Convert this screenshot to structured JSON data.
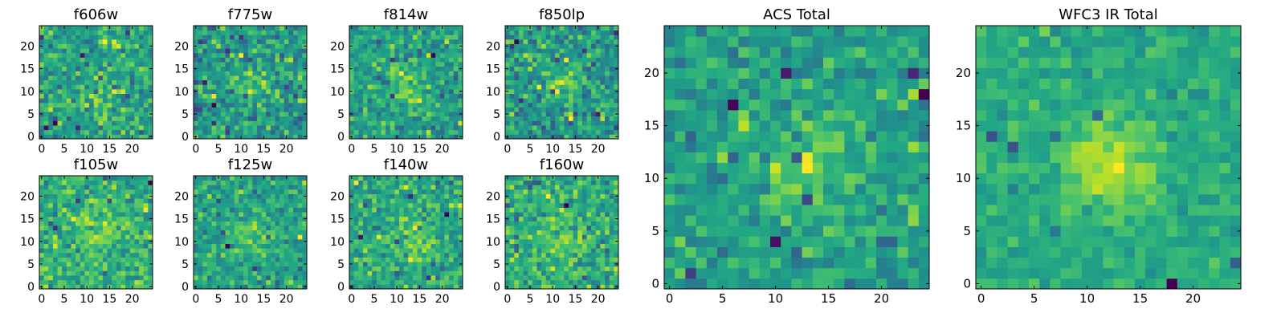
{
  "chart_data": [
    {
      "type": "heatmap",
      "title": "f606w",
      "colormap": "viridis",
      "xlim": [
        -0.5,
        24.5
      ],
      "ylim": [
        -0.5,
        24.5
      ],
      "xticks": [
        0,
        5,
        10,
        15,
        20
      ],
      "yticks": [
        0,
        5,
        10,
        15,
        20
      ],
      "grid": false,
      "seed": 11,
      "center": [
        13,
        9
      ],
      "signal": 0.15,
      "noise": 1.0
    },
    {
      "type": "heatmap",
      "title": "f775w",
      "colormap": "viridis",
      "xlim": [
        -0.5,
        24.5
      ],
      "ylim": [
        -0.5,
        24.5
      ],
      "xticks": [
        0,
        5,
        10,
        15,
        20
      ],
      "yticks": [
        0,
        5,
        10,
        15,
        20
      ],
      "grid": false,
      "seed": 23,
      "center": [
        13,
        11
      ],
      "signal": 0.3,
      "noise": 1.0
    },
    {
      "type": "heatmap",
      "title": "f814w",
      "colormap": "viridis",
      "xlim": [
        -0.5,
        24.5
      ],
      "ylim": [
        -0.5,
        24.5
      ],
      "xticks": [
        0,
        5,
        10,
        15,
        20
      ],
      "yticks": [
        0,
        5,
        10,
        15,
        20
      ],
      "grid": false,
      "seed": 37,
      "center": [
        12,
        11
      ],
      "signal": 0.45,
      "noise": 1.0
    },
    {
      "type": "heatmap",
      "title": "f850lp",
      "colormap": "viridis",
      "xlim": [
        -0.5,
        24.5
      ],
      "ylim": [
        -0.5,
        24.5
      ],
      "xticks": [
        0,
        5,
        10,
        15,
        20
      ],
      "yticks": [
        0,
        5,
        10,
        15,
        20
      ],
      "grid": false,
      "seed": 41,
      "center": [
        12,
        12
      ],
      "signal": 0.5,
      "noise": 1.0
    },
    {
      "type": "heatmap",
      "title": "f105w",
      "colormap": "viridis",
      "xlim": [
        -0.5,
        24.5
      ],
      "ylim": [
        -0.5,
        24.5
      ],
      "xticks": [
        0,
        5,
        10,
        15,
        20
      ],
      "yticks": [
        0,
        5,
        10,
        15,
        20
      ],
      "grid": false,
      "seed": 53,
      "center": [
        13,
        11
      ],
      "signal": 0.5,
      "noise": 1.0
    },
    {
      "type": "heatmap",
      "title": "f125w",
      "colormap": "viridis",
      "xlim": [
        -0.5,
        24.5
      ],
      "ylim": [
        -0.5,
        24.5
      ],
      "xticks": [
        0,
        5,
        10,
        15,
        20
      ],
      "yticks": [
        0,
        5,
        10,
        15,
        20
      ],
      "grid": false,
      "seed": 67,
      "center": [
        12,
        11
      ],
      "signal": 0.55,
      "noise": 1.0
    },
    {
      "type": "heatmap",
      "title": "f140w",
      "colormap": "viridis",
      "xlim": [
        -0.5,
        24.5
      ],
      "ylim": [
        -0.5,
        24.5
      ],
      "xticks": [
        0,
        5,
        10,
        15,
        20
      ],
      "yticks": [
        0,
        5,
        10,
        15,
        20
      ],
      "grid": false,
      "seed": 71,
      "center": [
        13,
        10
      ],
      "signal": 0.6,
      "noise": 1.0
    },
    {
      "type": "heatmap",
      "title": "f160w",
      "colormap": "viridis",
      "xlim": [
        -0.5,
        24.5
      ],
      "ylim": [
        -0.5,
        24.5
      ],
      "xticks": [
        0,
        5,
        10,
        15,
        20
      ],
      "yticks": [
        0,
        5,
        10,
        15,
        20
      ],
      "grid": false,
      "seed": 89,
      "center": [
        12,
        11
      ],
      "signal": 0.55,
      "noise": 1.0
    },
    {
      "type": "heatmap",
      "title": "ACS Total",
      "colormap": "viridis",
      "xlim": [
        -0.5,
        24.5
      ],
      "ylim": [
        -0.5,
        24.5
      ],
      "xticks": [
        0,
        5,
        10,
        15,
        20
      ],
      "yticks": [
        0,
        5,
        10,
        15,
        20
      ],
      "grid": false,
      "seed": 97,
      "center": [
        13,
        11
      ],
      "signal": 0.6,
      "noise": 0.8
    },
    {
      "type": "heatmap",
      "title": "WFC3 IR Total",
      "colormap": "viridis",
      "xlim": [
        -0.5,
        24.5
      ],
      "ylim": [
        -0.5,
        24.5
      ],
      "xticks": [
        0,
        5,
        10,
        15,
        20
      ],
      "yticks": [
        0,
        5,
        10,
        15,
        20
      ],
      "grid": false,
      "seed": 103,
      "center": [
        12,
        11
      ],
      "signal": 0.9,
      "noise": 0.6
    }
  ]
}
